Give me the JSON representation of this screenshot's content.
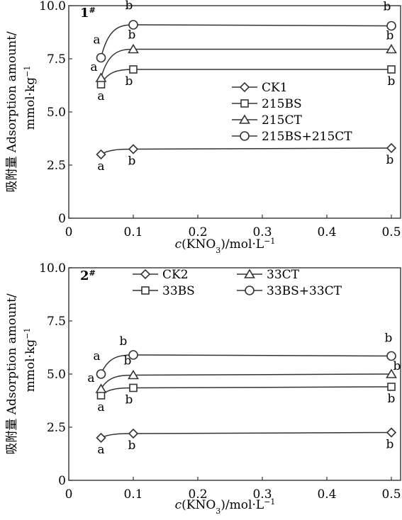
{
  "chart_data": [
    {
      "type": "line",
      "panel_label": "1",
      "panel_label_sup": "#",
      "x": [
        0.05,
        0.1,
        0.5
      ],
      "xlim": [
        0,
        0.5
      ],
      "ylim": [
        0,
        10
      ],
      "x_ticks": [
        "0",
        "0.1",
        "0.2",
        "0.3",
        "0.4",
        "0.5"
      ],
      "y_ticks": [
        "0",
        "2.5",
        "5.0",
        "7.5",
        "10.0"
      ],
      "legend_placement": "center-right",
      "series": [
        {
          "name": "CK1",
          "marker": "diamond",
          "values": [
            3.0,
            3.25,
            3.3
          ],
          "labels": [
            "a",
            "b",
            "b"
          ]
        },
        {
          "name": "215BS",
          "marker": "square",
          "values": [
            6.3,
            7.0,
            7.0
          ],
          "labels": [
            "a",
            "b",
            "b"
          ]
        },
        {
          "name": "215CT",
          "marker": "triangle",
          "values": [
            6.6,
            7.95,
            7.95
          ],
          "labels": [
            "a",
            "b",
            "b"
          ]
        },
        {
          "name": "215BS+215CT",
          "marker": "circle",
          "values": [
            7.55,
            9.1,
            9.05
          ],
          "labels": [
            "a",
            "b",
            "b"
          ]
        }
      ]
    },
    {
      "type": "line",
      "panel_label": "2",
      "panel_label_sup": "#",
      "x": [
        0.05,
        0.1,
        0.5
      ],
      "xlim": [
        0,
        0.5
      ],
      "ylim": [
        0,
        10
      ],
      "x_ticks": [
        "0",
        "0.1",
        "0.2",
        "0.3",
        "0.4",
        "0.5"
      ],
      "y_ticks": [
        "0",
        "2.5",
        "5.0",
        "7.5",
        "10.0"
      ],
      "legend_placement": "top",
      "series": [
        {
          "name": "CK2",
          "marker": "diamond",
          "values": [
            2.0,
            2.2,
            2.25
          ],
          "labels": [
            "a",
            "b",
            "b"
          ]
        },
        {
          "name": "33BS",
          "marker": "square",
          "values": [
            4.0,
            4.35,
            4.4
          ],
          "labels": [
            "a",
            "b",
            "b"
          ]
        },
        {
          "name": "33CT",
          "marker": "triangle",
          "values": [
            4.3,
            4.95,
            5.0
          ],
          "labels": [
            "a",
            "b",
            "b"
          ]
        },
        {
          "name": "33BS+33CT",
          "marker": "circle",
          "values": [
            5.0,
            5.9,
            5.85
          ],
          "labels": [
            "a",
            "b",
            "b"
          ]
        }
      ]
    }
  ],
  "axis_text": {
    "ylabel_cn": "吸附量",
    "ylabel_en": "Adsorption amount/",
    "ylabel_unit_pre": "mmol·kg",
    "ylabel_unit_sup": "−1",
    "xlabel_c": "c",
    "xlabel_pre": "(KNO",
    "xlabel_sub": "3",
    "xlabel_post": ")/mol·L",
    "xlabel_sup": "−1"
  },
  "colors": {
    "ink": "#333333",
    "background": "#ffffff"
  }
}
